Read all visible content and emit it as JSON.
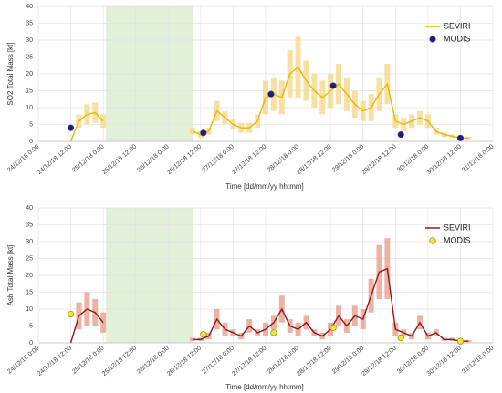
{
  "chart_data": [
    {
      "type": "line",
      "ylabel": "SO2 Total Mass [kt]",
      "xlabel": "Time [dd/mm/yy hh:mm]",
      "xlim": [
        "2018-12-24 00:00",
        "2018-12-31 00:00"
      ],
      "xticks": [
        {
          "value": "2018-12-24 00:00",
          "label": "24/12/18 0:00"
        },
        {
          "value": "2018-12-24 12:00",
          "label": "24/12/18 12:00"
        },
        {
          "value": "2018-12-25 00:00",
          "label": "25/12/18 0:00"
        },
        {
          "value": "2018-12-25 12:00",
          "label": "25/12/18 12:00"
        },
        {
          "value": "2018-12-26 00:00",
          "label": "26/12/18 0:00"
        },
        {
          "value": "2018-12-26 12:00",
          "label": "26/12/18 12:00"
        },
        {
          "value": "2018-12-27 00:00",
          "label": "27/12/18 0:00"
        },
        {
          "value": "2018-12-27 12:00",
          "label": "27/12/18 12:00"
        },
        {
          "value": "2018-12-28 00:00",
          "label": "28/12/18 0:00"
        },
        {
          "value": "2018-12-28 12:00",
          "label": "28/12/18 12:00"
        },
        {
          "value": "2018-12-29 00:00",
          "label": "29/12/18 0:00"
        },
        {
          "value": "2018-12-29 12:00",
          "label": "29/12/18 12:00"
        },
        {
          "value": "2018-12-30 00:00",
          "label": "30/12/18 0:00"
        },
        {
          "value": "2018-12-30 12:00",
          "label": "30/12/18 12:00"
        },
        {
          "value": "2018-12-31 00:00",
          "label": "31/12/18 0:00"
        }
      ],
      "ylim": [
        0,
        40
      ],
      "yticks": [
        0,
        5,
        10,
        15,
        20,
        25,
        30,
        35,
        40
      ],
      "grid": true,
      "shaded": [
        "2018-12-25 01:00",
        "2018-12-26 09:00"
      ],
      "shaded_color": "#e2efd9",
      "series": [
        {
          "name": "SEVIRI",
          "style": "line",
          "color": "#e6b800",
          "error_color": "#f6d98a",
          "x": [
            "2018-12-24 12:00",
            "2018-12-24 15:00",
            "2018-12-24 18:00",
            "2018-12-24 21:00",
            "2018-12-25 00:00",
            "2018-12-25 03:00",
            "2018-12-26 09:00",
            "2018-12-26 12:00",
            "2018-12-26 15:00",
            "2018-12-26 18:00",
            "2018-12-26 21:00",
            "2018-12-27 00:00",
            "2018-12-27 03:00",
            "2018-12-27 06:00",
            "2018-12-27 09:00",
            "2018-12-27 12:00",
            "2018-12-27 15:00",
            "2018-12-27 18:00",
            "2018-12-27 21:00",
            "2018-12-28 00:00",
            "2018-12-28 03:00",
            "2018-12-28 06:00",
            "2018-12-28 09:00",
            "2018-12-28 12:00",
            "2018-12-28 15:00",
            "2018-12-28 18:00",
            "2018-12-28 21:00",
            "2018-12-29 00:00",
            "2018-12-29 03:00",
            "2018-12-29 06:00",
            "2018-12-29 09:00",
            "2018-12-29 12:00",
            "2018-12-29 15:00",
            "2018-12-29 18:00",
            "2018-12-29 21:00",
            "2018-12-30 00:00",
            "2018-12-30 03:00",
            "2018-12-30 06:00",
            "2018-12-30 09:00",
            "2018-12-30 12:00",
            "2018-12-30 15:00"
          ],
          "values": [
            0,
            6,
            8,
            8.5,
            6,
            null,
            3,
            2,
            3,
            9,
            7,
            5,
            4,
            4,
            6,
            13,
            14,
            13,
            20,
            22,
            18,
            15,
            13,
            15,
            17,
            14,
            11,
            9,
            10,
            14,
            17,
            6,
            5,
            6,
            7,
            6,
            3,
            2,
            1.5,
            1,
            1
          ],
          "errors": [
            0,
            2,
            3,
            3,
            2,
            null,
            1,
            1,
            1,
            3,
            2,
            1.5,
            1.5,
            1.5,
            2,
            5,
            5,
            5,
            7,
            9,
            6,
            5,
            5,
            5,
            6,
            5,
            4,
            3,
            4,
            5,
            6,
            2,
            2,
            2,
            2,
            2,
            1,
            0.8,
            0.5,
            0.4,
            0.4
          ]
        },
        {
          "name": "MODIS",
          "style": "scatter",
          "color": "#1a1a8c",
          "edge_color": "#555",
          "x": [
            "2018-12-24 12:00",
            "2018-12-26 13:00",
            "2018-12-27 14:00",
            "2018-12-28 13:00",
            "2018-12-29 14:00",
            "2018-12-30 12:00"
          ],
          "values": [
            4,
            2.5,
            14,
            16.5,
            2,
            1
          ]
        }
      ]
    },
    {
      "type": "line",
      "ylabel": "Ash Total Mass [kt]",
      "xlabel": "Time [dd/mm/yy hh:mm]",
      "xlim": [
        "2018-12-24 00:00",
        "2018-12-31 00:00"
      ],
      "xticks": [
        {
          "value": "2018-12-24 00:00",
          "label": "24/12/18 0:00"
        },
        {
          "value": "2018-12-24 12:00",
          "label": "24/12/18 12:00"
        },
        {
          "value": "2018-12-25 00:00",
          "label": "25/12/18 0:00"
        },
        {
          "value": "2018-12-25 12:00",
          "label": "25/12/18 12:00"
        },
        {
          "value": "2018-12-26 00:00",
          "label": "26/12/18 0:00"
        },
        {
          "value": "2018-12-26 12:00",
          "label": "26/12/18 12:00"
        },
        {
          "value": "2018-12-27 00:00",
          "label": "27/12/18 0:00"
        },
        {
          "value": "2018-12-27 12:00",
          "label": "27/12/18 12:00"
        },
        {
          "value": "2018-12-28 00:00",
          "label": "28/12/18 0:00"
        },
        {
          "value": "2018-12-28 12:00",
          "label": "28/12/18 12:00"
        },
        {
          "value": "2018-12-29 00:00",
          "label": "29/12/18 0:00"
        },
        {
          "value": "2018-12-29 12:00",
          "label": "29/12/18 12:00"
        },
        {
          "value": "2018-12-30 00:00",
          "label": "30/12/18 0:00"
        },
        {
          "value": "2018-12-30 12:00",
          "label": "30/12/18 12:00"
        },
        {
          "value": "2018-12-31 00:00",
          "label": "31/12/18 0:00"
        }
      ],
      "ylim": [
        0,
        40
      ],
      "yticks": [
        0,
        5,
        10,
        15,
        20,
        25,
        30,
        35,
        40
      ],
      "grid": true,
      "shaded": [
        "2018-12-25 01:00",
        "2018-12-26 09:00"
      ],
      "shaded_color": "#e2efd9",
      "series": [
        {
          "name": "SEVIRI",
          "style": "line",
          "color": "#8b1a1a",
          "error_color": "#eba08f",
          "x": [
            "2018-12-24 12:00",
            "2018-12-24 15:00",
            "2018-12-24 18:00",
            "2018-12-24 21:00",
            "2018-12-25 00:00",
            "2018-12-25 03:00",
            "2018-12-26 09:00",
            "2018-12-26 12:00",
            "2018-12-26 15:00",
            "2018-12-26 18:00",
            "2018-12-26 21:00",
            "2018-12-27 00:00",
            "2018-12-27 03:00",
            "2018-12-27 06:00",
            "2018-12-27 09:00",
            "2018-12-27 12:00",
            "2018-12-27 15:00",
            "2018-12-27 18:00",
            "2018-12-27 21:00",
            "2018-12-28 00:00",
            "2018-12-28 03:00",
            "2018-12-28 06:00",
            "2018-12-28 09:00",
            "2018-12-28 12:00",
            "2018-12-28 15:00",
            "2018-12-28 18:00",
            "2018-12-28 21:00",
            "2018-12-29 00:00",
            "2018-12-29 03:00",
            "2018-12-29 06:00",
            "2018-12-29 09:00",
            "2018-12-29 12:00",
            "2018-12-29 15:00",
            "2018-12-29 18:00",
            "2018-12-29 21:00",
            "2018-12-30 00:00",
            "2018-12-30 03:00",
            "2018-12-30 06:00",
            "2018-12-30 09:00",
            "2018-12-30 12:00",
            "2018-12-30 15:00"
          ],
          "values": [
            0,
            8,
            10,
            9,
            6,
            null,
            1,
            1,
            2,
            7,
            4,
            3,
            2,
            5,
            3,
            4,
            6,
            10,
            5,
            4,
            6,
            3,
            2,
            4,
            8,
            5,
            8,
            7,
            14,
            21,
            22,
            4,
            3,
            2,
            6,
            2,
            3,
            1,
            1,
            0.5,
            0.5
          ],
          "errors": [
            0,
            4,
            5,
            4,
            3,
            null,
            0.5,
            0.5,
            1,
            3,
            2,
            1,
            1,
            2,
            1,
            2,
            2,
            4,
            2,
            2,
            2,
            1,
            1,
            2,
            3,
            2,
            3,
            3,
            5,
            8,
            9,
            2,
            1,
            1,
            2,
            1,
            1,
            0.5,
            0.5,
            0.3,
            0.3
          ]
        },
        {
          "name": "MODIS",
          "style": "scatter",
          "color": "#f2e33a",
          "edge_color": "#8a7a00",
          "x": [
            "2018-12-24 12:00",
            "2018-12-26 13:00",
            "2018-12-27 15:00",
            "2018-12-28 13:00",
            "2018-12-29 14:00",
            "2018-12-30 12:00"
          ],
          "values": [
            8.5,
            2.5,
            3,
            4.5,
            1.5,
            0.5
          ]
        }
      ]
    }
  ]
}
